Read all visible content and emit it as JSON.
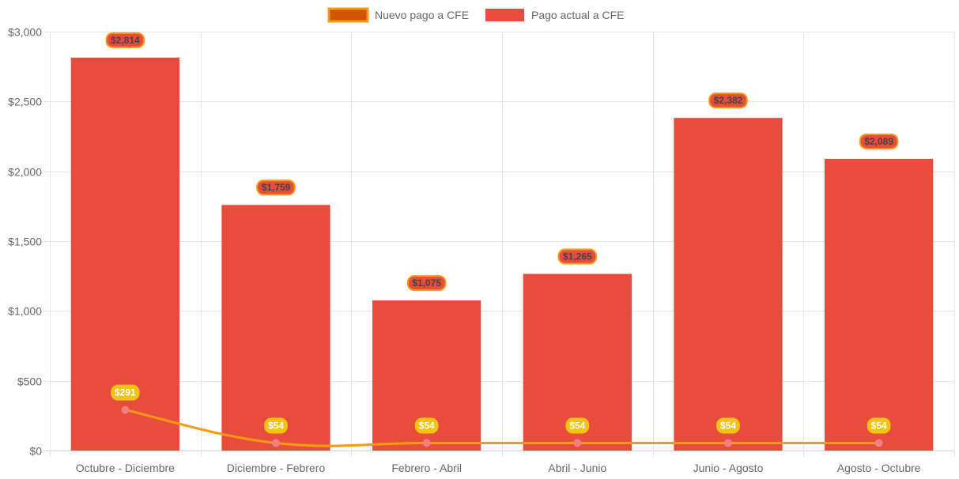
{
  "chart_data": {
    "type": "bar",
    "categories": [
      "Octubre - Diciembre",
      "Diciembre - Febrero",
      "Febrero - Abril",
      "Abril - Junio",
      "Junio - Agosto",
      "Agosto - Octubre"
    ],
    "series": [
      {
        "name": "Nuevo pago a CFE",
        "kind": "line",
        "values": [
          291,
          54,
          54,
          54,
          54,
          54
        ],
        "labels": [
          "$291",
          "$54",
          "$54",
          "$54",
          "$54",
          "$54"
        ],
        "color": "#f39c12",
        "point_color": "#f08080",
        "label_bg": "#f1c40f"
      },
      {
        "name": "Pago actual a CFE",
        "kind": "bar",
        "values": [
          2814,
          1759,
          1075,
          1265,
          2382,
          2089
        ],
        "labels": [
          "$2,814",
          "$1,759",
          "$1,075",
          "$1,265",
          "$2,382",
          "$2,089"
        ],
        "color": "#e74c3c",
        "label_border": "#f39c12"
      }
    ],
    "yticks": [
      0,
      500,
      1000,
      1500,
      2000,
      2500,
      3000
    ],
    "ytick_labels": [
      "$0",
      "$500",
      "$1,000",
      "$1,500",
      "$2,000",
      "$2,500",
      "$3,000"
    ],
    "ylim": [
      0,
      3000
    ],
    "title": "",
    "xlabel": "",
    "ylabel": "",
    "grid": true,
    "legend": "top-center"
  },
  "legend": {
    "items": [
      {
        "label": "Nuevo pago a CFE",
        "fill": "#d35400",
        "stroke": "#f39c12"
      },
      {
        "label": "Pago actual a CFE",
        "fill": "#e74c3c",
        "stroke": "#e74c3c"
      }
    ]
  }
}
